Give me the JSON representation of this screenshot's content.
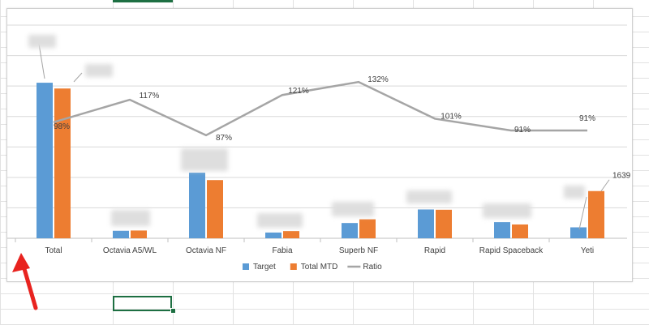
{
  "chart_data": {
    "type": "bar",
    "title": "",
    "categories": [
      "Total",
      "Octavia A5/WL",
      "Octavia NF",
      "Fabia",
      "Superb NF",
      "Rapid",
      "Rapid Spaceback",
      "Yeti"
    ],
    "series": [
      {
        "name": "Target",
        "kind": "bar",
        "color": "#5b9bd5",
        "values": [
          5400,
          260,
          2280,
          200,
          530,
          1000,
          560,
          380
        ]
      },
      {
        "name": "Total MTD",
        "kind": "bar",
        "color": "#ed7d31",
        "values": [
          5200,
          270,
          2020,
          250,
          660,
          990,
          480,
          1639
        ]
      },
      {
        "name": "Ratio",
        "kind": "line",
        "color": "#a5a5a5",
        "axis": "secondary",
        "values": [
          98,
          117,
          87,
          121,
          132,
          101,
          91,
          91
        ]
      }
    ],
    "ratio_labels": [
      "98%",
      "117%",
      "87%",
      "121%",
      "132%",
      "101%",
      "91%",
      "91%"
    ],
    "data_label_yeti_mtd": "1639",
    "ylim_primary": [
      0,
      7400
    ],
    "ylim_secondary": [
      0,
      180
    ],
    "gridlines": 7,
    "legend": "bottom",
    "legend_items": [
      {
        "name": "Target",
        "marker": "square",
        "color": "#5b9bd5"
      },
      {
        "name": "Total MTD",
        "marker": "square",
        "color": "#ed7d31"
      },
      {
        "name": "Ratio",
        "marker": "line",
        "color": "#a5a5a5"
      }
    ]
  }
}
